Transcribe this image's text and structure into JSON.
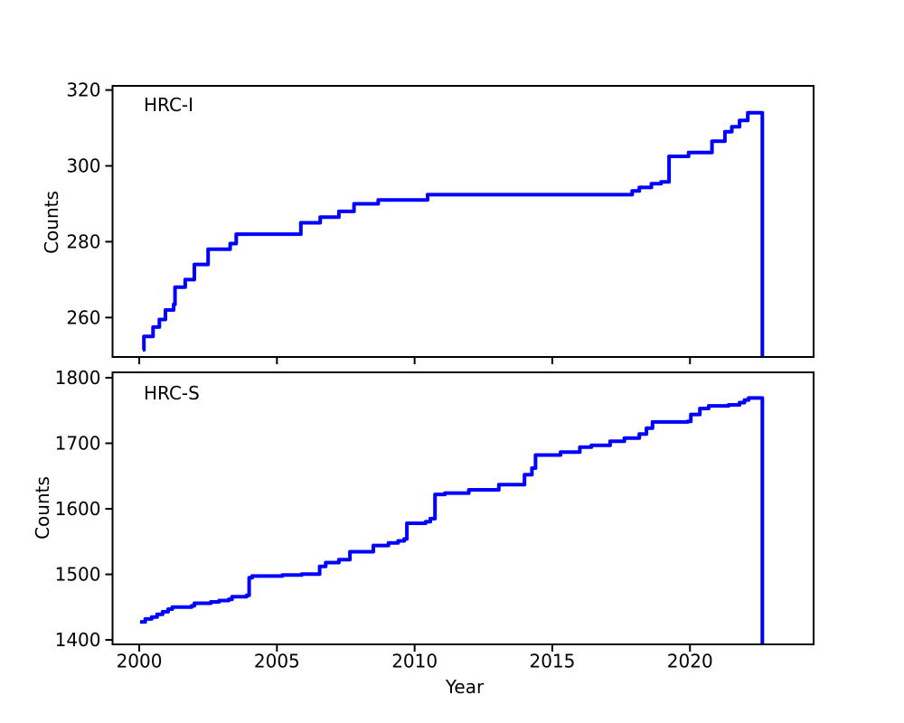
{
  "figure": {
    "background": "#ffffff",
    "text_color": "#000000",
    "accent_color": "#0000ff"
  },
  "chart_data": [
    {
      "type": "line",
      "drawstyle": "steps-post",
      "annotation": "HRC-I",
      "xlabel": "",
      "ylabel": "Counts",
      "line_color": "#0000ff",
      "line_width": 4,
      "grid": false,
      "legend": "none",
      "xlim": [
        1999.03,
        2024.49
      ],
      "ylim": [
        249.6,
        321.1
      ],
      "xticks": [
        2000,
        2005,
        2010,
        2015,
        2020
      ],
      "show_xtick_labels": false,
      "yticks": [
        260,
        280,
        300,
        320
      ],
      "points": [
        [
          2000.13,
          251.5
        ],
        [
          2000.17,
          255
        ],
        [
          2000.5,
          257.5
        ],
        [
          2000.73,
          259.5
        ],
        [
          2000.95,
          262
        ],
        [
          2001.25,
          263.5
        ],
        [
          2001.3,
          268
        ],
        [
          2001.67,
          270
        ],
        [
          2002.0,
          274
        ],
        [
          2002.5,
          278
        ],
        [
          2003.3,
          279.5
        ],
        [
          2003.52,
          282
        ],
        [
          2005.87,
          285
        ],
        [
          2006.57,
          286.5
        ],
        [
          2007.25,
          288
        ],
        [
          2007.8,
          290
        ],
        [
          2008.68,
          291
        ],
        [
          2010.47,
          292.4
        ],
        [
          2017.9,
          293.4
        ],
        [
          2018.16,
          294.3
        ],
        [
          2018.6,
          295.3
        ],
        [
          2018.95,
          295.8
        ],
        [
          2019.24,
          302.5
        ],
        [
          2019.95,
          303.5
        ],
        [
          2020.8,
          306.5
        ],
        [
          2021.27,
          309
        ],
        [
          2021.52,
          310.3
        ],
        [
          2021.8,
          312
        ],
        [
          2022.1,
          314
        ],
        [
          2022.63,
          249.7
        ]
      ]
    },
    {
      "type": "line",
      "drawstyle": "steps-post",
      "annotation": "HRC-S",
      "xlabel": "Year",
      "ylabel": "Counts",
      "line_color": "#0000ff",
      "line_width": 4,
      "grid": false,
      "legend": "none",
      "xlim": [
        1999.03,
        2024.49
      ],
      "ylim": [
        1393.2,
        1808.2
      ],
      "xticks": [
        2000,
        2005,
        2010,
        2015,
        2020
      ],
      "show_xtick_labels": true,
      "yticks": [
        1400,
        1500,
        1600,
        1700,
        1800
      ],
      "points": [
        [
          2000.03,
          1427.5
        ],
        [
          2000.22,
          1432
        ],
        [
          2000.45,
          1435
        ],
        [
          2000.65,
          1439
        ],
        [
          2000.85,
          1443
        ],
        [
          2001.05,
          1447
        ],
        [
          2001.2,
          1450
        ],
        [
          2001.9,
          1452
        ],
        [
          2002.0,
          1456
        ],
        [
          2002.6,
          1458
        ],
        [
          2002.9,
          1460
        ],
        [
          2003.25,
          1462
        ],
        [
          2003.37,
          1466
        ],
        [
          2003.9,
          1468
        ],
        [
          2003.99,
          1495
        ],
        [
          2004.1,
          1497.5
        ],
        [
          2005.2,
          1499
        ],
        [
          2005.9,
          1500.5
        ],
        [
          2006.55,
          1512
        ],
        [
          2006.77,
          1518
        ],
        [
          2007.25,
          1522.5
        ],
        [
          2007.65,
          1534.5
        ],
        [
          2008.5,
          1544
        ],
        [
          2009.05,
          1548
        ],
        [
          2009.4,
          1551
        ],
        [
          2009.62,
          1554
        ],
        [
          2009.72,
          1578
        ],
        [
          2010.4,
          1580.5
        ],
        [
          2010.57,
          1585
        ],
        [
          2010.74,
          1622
        ],
        [
          2011.1,
          1624
        ],
        [
          2011.97,
          1629
        ],
        [
          2013.06,
          1637
        ],
        [
          2013.99,
          1652
        ],
        [
          2014.26,
          1662
        ],
        [
          2014.39,
          1682
        ],
        [
          2015.3,
          1686.5
        ],
        [
          2016.0,
          1694
        ],
        [
          2016.42,
          1697
        ],
        [
          2017.1,
          1703
        ],
        [
          2017.62,
          1708
        ],
        [
          2018.16,
          1714
        ],
        [
          2018.42,
          1723
        ],
        [
          2018.64,
          1732.5
        ],
        [
          2019.92,
          1733.5
        ],
        [
          2020.03,
          1744
        ],
        [
          2020.36,
          1753
        ],
        [
          2020.68,
          1757
        ],
        [
          2021.4,
          1758.5
        ],
        [
          2021.8,
          1762
        ],
        [
          2021.98,
          1766
        ],
        [
          2022.13,
          1769
        ],
        [
          2022.63,
          1394
        ]
      ]
    }
  ]
}
